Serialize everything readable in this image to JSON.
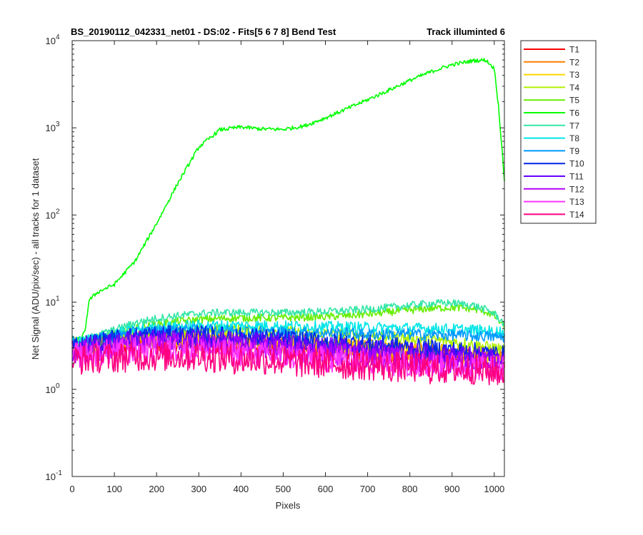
{
  "chart_data": {
    "type": "line",
    "title_left": "BS_20190112_042331_net01 - DS:02 - Fits[5  6  7  8]   Bend Test",
    "title_right": "Track illuminted 6",
    "xlabel": "Pixels",
    "ylabel": "Net Signal (ADU/pix/sec) - all tracks for 1 dataset",
    "xlim": [
      0,
      1024
    ],
    "ylim": [
      0.1,
      10000
    ],
    "yscale": "log",
    "x_ticks": [
      "0",
      "100",
      "200",
      "300",
      "400",
      "500",
      "600",
      "700",
      "800",
      "900",
      "1000"
    ],
    "y_ticks": [
      {
        "base": "10",
        "exp": "-1"
      },
      {
        "base": "10",
        "exp": "0"
      },
      {
        "base": "10",
        "exp": "1"
      },
      {
        "base": "10",
        "exp": "2"
      },
      {
        "base": "10",
        "exp": "3"
      },
      {
        "base": "10",
        "exp": "4"
      }
    ],
    "legend_position": "outside-right-top",
    "x": [
      0,
      20,
      30,
      40,
      60,
      100,
      150,
      200,
      250,
      300,
      350,
      400,
      450,
      500,
      550,
      600,
      650,
      700,
      750,
      800,
      850,
      900,
      950,
      980,
      1000,
      1010,
      1024
    ],
    "series": [
      {
        "name": "T1",
        "color": "#ff0000",
        "noise": 0.05,
        "values": [
          2.8,
          2.8,
          2.9,
          2.9,
          3.0,
          3.1,
          3.3,
          3.4,
          3.4,
          3.4,
          3.3,
          3.2,
          3.1,
          3.0,
          2.9,
          2.8,
          2.7,
          2.6,
          2.6,
          2.5,
          2.4,
          2.4,
          2.3,
          2.3,
          2.2,
          2.2,
          2.2
        ]
      },
      {
        "name": "T2",
        "color": "#ff8000",
        "noise": 0.05,
        "values": [
          3.0,
          3.0,
          3.1,
          3.1,
          3.2,
          3.4,
          3.6,
          3.7,
          3.7,
          3.7,
          3.6,
          3.5,
          3.4,
          3.3,
          3.2,
          3.1,
          3.0,
          2.9,
          2.8,
          2.7,
          2.6,
          2.6,
          2.5,
          2.5,
          2.4,
          2.4,
          2.4
        ]
      },
      {
        "name": "T3",
        "color": "#ffd700",
        "noise": 0.05,
        "values": [
          3.2,
          3.2,
          3.3,
          3.3,
          3.4,
          3.6,
          3.9,
          4.0,
          4.0,
          4.0,
          3.9,
          3.8,
          3.7,
          3.6,
          3.4,
          3.3,
          3.2,
          3.1,
          2.9,
          2.8,
          2.7,
          2.6,
          2.5,
          2.4,
          2.3,
          2.3,
          2.3
        ]
      },
      {
        "name": "T4",
        "color": "#b0f000",
        "noise": 0.03,
        "values": [
          3.3,
          3.3,
          3.4,
          3.5,
          3.6,
          3.8,
          4.2,
          4.4,
          4.6,
          4.7,
          4.8,
          4.8,
          4.7,
          4.6,
          4.5,
          4.4,
          4.3,
          4.2,
          4.0,
          3.9,
          3.7,
          3.5,
          3.3,
          3.1,
          3.0,
          2.9,
          2.8
        ]
      },
      {
        "name": "T5",
        "color": "#66ee00",
        "noise": 0.02,
        "values": [
          3.5,
          3.5,
          3.6,
          3.7,
          3.9,
          4.3,
          5.0,
          5.6,
          6.0,
          6.3,
          6.5,
          6.6,
          6.6,
          6.6,
          6.7,
          6.8,
          7.0,
          7.3,
          7.7,
          8.1,
          8.5,
          8.7,
          8.4,
          7.8,
          7.0,
          6.2,
          5.2
        ]
      },
      {
        "name": "T6",
        "color": "#00ff00",
        "noise": 0.01,
        "values": [
          3.7,
          3.8,
          4.5,
          10.5,
          13,
          16,
          30,
          80,
          230,
          600,
          950,
          1020,
          970,
          960,
          1050,
          1300,
          1650,
          2100,
          2700,
          3500,
          4400,
          5300,
          5900,
          6000,
          4800,
          1800,
          250
        ]
      },
      {
        "name": "T7",
        "color": "#33e6a6",
        "noise": 0.02,
        "values": [
          3.6,
          3.6,
          3.7,
          3.9,
          4.2,
          4.8,
          5.8,
          6.5,
          7.0,
          7.4,
          7.6,
          7.6,
          7.6,
          7.6,
          7.7,
          7.8,
          8.0,
          8.3,
          8.7,
          9.2,
          9.7,
          9.8,
          9.2,
          8.2,
          7.4,
          6.6,
          5.6
        ]
      },
      {
        "name": "T8",
        "color": "#00e6e6",
        "noise": 0.03,
        "values": [
          3.5,
          3.5,
          3.6,
          3.7,
          3.9,
          4.3,
          4.8,
          5.1,
          5.3,
          5.4,
          5.4,
          5.4,
          5.4,
          5.3,
          5.3,
          5.2,
          5.2,
          5.1,
          5.1,
          5.0,
          5.0,
          4.9,
          4.8,
          4.7,
          4.6,
          4.6,
          4.5
        ]
      },
      {
        "name": "T9",
        "color": "#0099ff",
        "noise": 0.03,
        "values": [
          3.4,
          3.4,
          3.5,
          3.6,
          3.8,
          4.1,
          4.5,
          4.7,
          4.8,
          4.8,
          4.8,
          4.7,
          4.6,
          4.5,
          4.5,
          4.4,
          4.4,
          4.3,
          4.3,
          4.3,
          4.2,
          4.2,
          4.1,
          4.1,
          4.0,
          4.0,
          4.0
        ]
      },
      {
        "name": "T10",
        "color": "#0026e6",
        "noise": 0.05,
        "values": [
          3.2,
          3.2,
          3.3,
          3.4,
          3.5,
          3.8,
          4.1,
          4.2,
          4.2,
          4.2,
          4.1,
          4.0,
          3.9,
          3.8,
          3.6,
          3.5,
          3.4,
          3.3,
          3.2,
          3.0,
          2.9,
          2.8,
          2.7,
          2.6,
          2.5,
          2.5,
          2.5
        ]
      },
      {
        "name": "T11",
        "color": "#6600ff",
        "noise": 0.05,
        "values": [
          3.0,
          3.0,
          3.1,
          3.2,
          3.3,
          3.5,
          3.8,
          3.8,
          3.8,
          3.8,
          3.7,
          3.6,
          3.5,
          3.4,
          3.2,
          3.1,
          3.0,
          2.9,
          2.8,
          2.7,
          2.6,
          2.5,
          2.4,
          2.4,
          2.3,
          2.3,
          2.3
        ]
      },
      {
        "name": "T12",
        "color": "#b300ff",
        "noise": 0.06,
        "values": [
          2.7,
          2.7,
          2.8,
          2.8,
          2.9,
          3.0,
          3.2,
          3.3,
          3.3,
          3.2,
          3.1,
          3.0,
          2.9,
          2.8,
          2.7,
          2.6,
          2.5,
          2.4,
          2.3,
          2.2,
          2.1,
          2.1,
          2.0,
          2.0,
          1.9,
          1.9,
          1.9
        ]
      },
      {
        "name": "T13",
        "color": "#ff33ff",
        "noise": 0.07,
        "values": [
          2.5,
          2.5,
          2.5,
          2.5,
          2.6,
          2.7,
          2.8,
          2.9,
          2.9,
          2.8,
          2.7,
          2.6,
          2.5,
          2.4,
          2.3,
          2.2,
          2.2,
          2.1,
          2.0,
          2.0,
          1.9,
          1.9,
          1.8,
          1.8,
          1.8,
          1.8,
          1.8
        ]
      },
      {
        "name": "T14",
        "color": "#ff0080",
        "noise": 0.08,
        "values": [
          2.2,
          2.2,
          2.2,
          2.2,
          2.3,
          2.3,
          2.4,
          2.4,
          2.4,
          2.4,
          2.3,
          2.2,
          2.2,
          2.1,
          2.0,
          2.0,
          1.9,
          1.9,
          1.8,
          1.8,
          1.7,
          1.7,
          1.7,
          1.6,
          1.6,
          1.6,
          1.6
        ]
      }
    ]
  }
}
